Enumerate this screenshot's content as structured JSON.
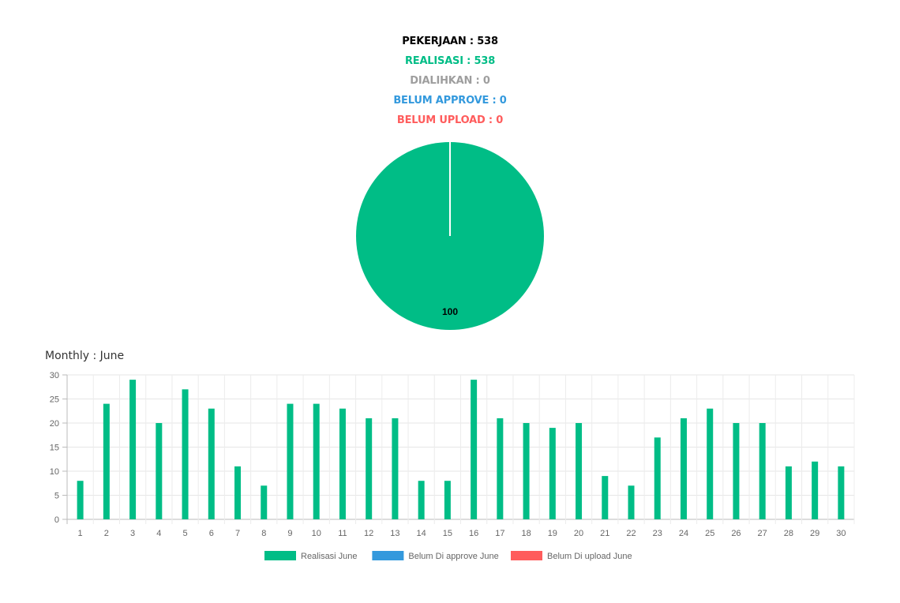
{
  "summary": {
    "pekerjaan": "PEKERJAAN : 538",
    "realisasi": "REALISASI : 538",
    "dialihkan": "DIALIHKAN : 0",
    "belum_approve": "BELUM APPROVE : 0",
    "belum_upload": "BELUM UPLOAD : 0"
  },
  "colors": {
    "black": "#000000",
    "green": "#00bd86",
    "grey": "#9e9e9e",
    "blue": "#3399dd",
    "red": "#ff5c5c"
  },
  "monthly_title": "Monthly : June",
  "chart_data": [
    {
      "type": "pie",
      "slices": [
        {
          "label": "Realisasi",
          "value": 100,
          "color": "#00bd86"
        }
      ],
      "data_label": "100"
    },
    {
      "type": "bar",
      "categories": [
        "1",
        "2",
        "3",
        "4",
        "5",
        "6",
        "7",
        "8",
        "9",
        "10",
        "11",
        "12",
        "13",
        "14",
        "15",
        "16",
        "17",
        "18",
        "19",
        "20",
        "21",
        "22",
        "23",
        "24",
        "25",
        "26",
        "27",
        "28",
        "29",
        "30"
      ],
      "series": [
        {
          "name": "Realisasi June",
          "color": "#00bd86",
          "values": [
            8,
            24,
            29,
            20,
            27,
            23,
            11,
            7,
            24,
            24,
            23,
            21,
            21,
            8,
            8,
            29,
            21,
            20,
            19,
            20,
            9,
            7,
            17,
            21,
            23,
            20,
            20,
            11,
            12,
            11
          ]
        },
        {
          "name": "Belum Di approve June",
          "color": "#3399dd",
          "values": [
            0,
            0,
            0,
            0,
            0,
            0,
            0,
            0,
            0,
            0,
            0,
            0,
            0,
            0,
            0,
            0,
            0,
            0,
            0,
            0,
            0,
            0,
            0,
            0,
            0,
            0,
            0,
            0,
            0,
            0
          ]
        },
        {
          "name": "Belum Di upload June",
          "color": "#ff5c5c",
          "values": [
            0,
            0,
            0,
            0,
            0,
            0,
            0,
            0,
            0,
            0,
            0,
            0,
            0,
            0,
            0,
            0,
            0,
            0,
            0,
            0,
            0,
            0,
            0,
            0,
            0,
            0,
            0,
            0,
            0,
            0
          ]
        }
      ],
      "ylim": [
        0,
        30
      ],
      "yticks": [
        0,
        5,
        10,
        15,
        20,
        25,
        30
      ],
      "grid": true,
      "legend": "bottom"
    }
  ]
}
